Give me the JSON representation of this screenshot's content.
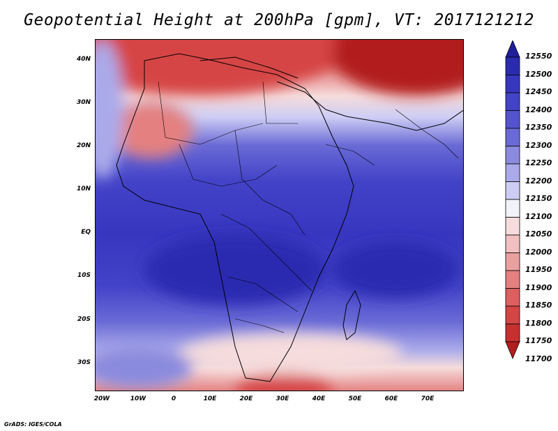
{
  "title": "Geopotential Height at 200hPa [gpm], VT: 2017121212",
  "credit": "GrADS: IGES/COLA",
  "map": {
    "lat_ticks": [
      "40N",
      "30N",
      "20N",
      "10N",
      "EQ",
      "10S",
      "20S",
      "30S"
    ],
    "lon_ticks": [
      "20W",
      "10W",
      "0",
      "10E",
      "20E",
      "30E",
      "40E",
      "50E",
      "60E",
      "70E"
    ]
  },
  "colorbar": {
    "levels": [
      "12550",
      "12500",
      "12450",
      "12400",
      "12350",
      "12300",
      "12250",
      "12200",
      "12150",
      "12100",
      "12050",
      "12000",
      "11950",
      "11900",
      "11850",
      "11800",
      "11750",
      "11700"
    ],
    "colors": [
      "#1e1e9a",
      "#2b2bb0",
      "#3636c0",
      "#4343c8",
      "#5454d0",
      "#6a6ad6",
      "#8a8ade",
      "#aaaaea",
      "#cdcdf4",
      "#f2f2fa",
      "#f6dcdc",
      "#f2c0c0",
      "#eba0a0",
      "#e48080",
      "#de5f5f",
      "#d64545",
      "#c83030",
      "#b21e1e"
    ]
  }
}
